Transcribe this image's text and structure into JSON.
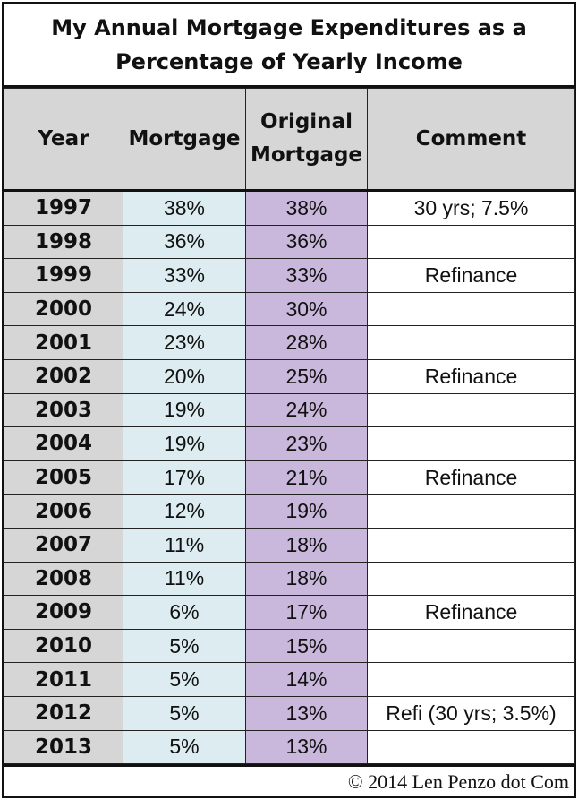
{
  "chart_data": {
    "type": "table",
    "title": "My Annual Mortgage Expenditures as a Percentage of Yearly Income",
    "columns": [
      "Year",
      "Mortgage",
      "Original Mortgage",
      "Comment"
    ],
    "rows": [
      [
        "1997",
        "38%",
        "38%",
        "30 yrs; 7.5%"
      ],
      [
        "1998",
        "36%",
        "36%",
        ""
      ],
      [
        "1999",
        "33%",
        "33%",
        "Refinance"
      ],
      [
        "2000",
        "24%",
        "30%",
        ""
      ],
      [
        "2001",
        "23%",
        "28%",
        ""
      ],
      [
        "2002",
        "20%",
        "25%",
        "Refinance"
      ],
      [
        "2003",
        "19%",
        "24%",
        ""
      ],
      [
        "2004",
        "19%",
        "23%",
        ""
      ],
      [
        "2005",
        "17%",
        "21%",
        "Refinance"
      ],
      [
        "2006",
        "12%",
        "19%",
        ""
      ],
      [
        "2007",
        "11%",
        "18%",
        ""
      ],
      [
        "2008",
        "11%",
        "18%",
        ""
      ],
      [
        "2009",
        "6%",
        "17%",
        "Refinance"
      ],
      [
        "2010",
        "5%",
        "15%",
        ""
      ],
      [
        "2011",
        "5%",
        "14%",
        ""
      ],
      [
        "2012",
        "5%",
        "13%",
        "Refi (30 yrs; 3.5%)"
      ],
      [
        "2013",
        "5%",
        "13%",
        ""
      ]
    ],
    "footer": "© 2014 Len Penzo dot Com"
  },
  "colors": {
    "header_fill": "#d6d6d6",
    "year_fill": "#d6d6d6",
    "mortgage_fill": "#dcecf0",
    "original_fill": "#c9b7dc",
    "comment_fill": "#ffffff"
  }
}
